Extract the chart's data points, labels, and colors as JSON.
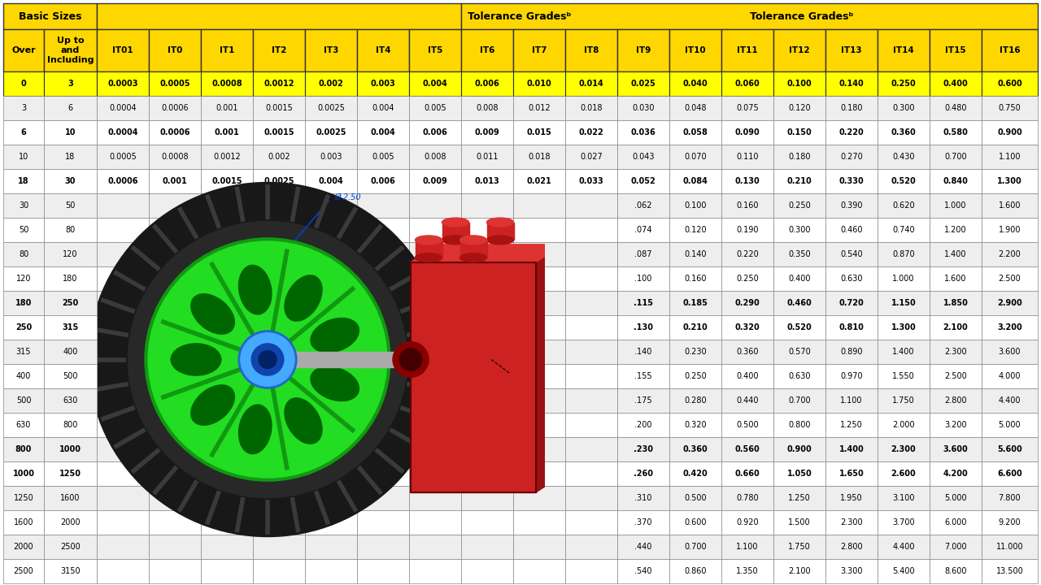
{
  "background_color": "#ffffff",
  "header_bg": "#FFD700",
  "row_yellow_bg": "#FFFF00",
  "col_headers": [
    "Over",
    "Up to\nand\nIncluding",
    "IT01",
    "IT0",
    "IT1",
    "IT2",
    "IT3",
    "IT4",
    "IT5",
    "IT6",
    "IT7",
    "IT8",
    "IT9",
    "IT10",
    "IT11",
    "IT12",
    "IT13",
    "IT14",
    "IT15",
    "IT16"
  ],
  "rows": [
    [
      "0",
      "3",
      "0.0003",
      "0.0005",
      "0.0008",
      "0.0012",
      "0.002",
      "0.003",
      "0.004",
      "0.006",
      "0.010",
      "0.014",
      "0.025",
      "0.040",
      "0.060",
      "0.100",
      "0.140",
      "0.250",
      "0.400",
      "0.600"
    ],
    [
      "3",
      "6",
      "0.0004",
      "0.0006",
      "0.001",
      "0.0015",
      "0.0025",
      "0.004",
      "0.005",
      "0.008",
      "0.012",
      "0.018",
      "0.030",
      "0.048",
      "0.075",
      "0.120",
      "0.180",
      "0.300",
      "0.480",
      "0.750"
    ],
    [
      "6",
      "10",
      "0.0004",
      "0.0006",
      "0.001",
      "0.0015",
      "0.0025",
      "0.004",
      "0.006",
      "0.009",
      "0.015",
      "0.022",
      "0.036",
      "0.058",
      "0.090",
      "0.150",
      "0.220",
      "0.360",
      "0.580",
      "0.900"
    ],
    [
      "10",
      "18",
      "0.0005",
      "0.0008",
      "0.0012",
      "0.002",
      "0.003",
      "0.005",
      "0.008",
      "0.011",
      "0.018",
      "0.027",
      "0.043",
      "0.070",
      "0.110",
      "0.180",
      "0.270",
      "0.430",
      "0.700",
      "1.100"
    ],
    [
      "18",
      "30",
      "0.0006",
      "0.001",
      "0.0015",
      "0.0025",
      "0.004",
      "0.006",
      "0.009",
      "0.013",
      "0.021",
      "0.033",
      "0.052",
      "0.084",
      "0.130",
      "0.210",
      "0.330",
      "0.520",
      "0.840",
      "1.300"
    ],
    [
      "30",
      "50",
      "",
      "",
      "",
      "",
      "",
      "",
      "",
      "",
      "",
      "",
      ".062",
      "0.100",
      "0.160",
      "0.250",
      "0.390",
      "0.620",
      "1.000",
      "1.600"
    ],
    [
      "50",
      "80",
      "",
      "",
      "",
      "",
      "",
      "",
      "",
      "",
      "",
      "",
      ".074",
      "0.120",
      "0.190",
      "0.300",
      "0.460",
      "0.740",
      "1.200",
      "1.900"
    ],
    [
      "80",
      "120",
      "",
      "",
      "",
      "",
      "",
      "",
      "",
      "",
      "",
      "",
      ".087",
      "0.140",
      "0.220",
      "0.350",
      "0.540",
      "0.870",
      "1.400",
      "2.200"
    ],
    [
      "120",
      "180",
      "",
      "",
      "",
      "",
      "",
      "",
      "",
      "",
      "",
      "",
      ".100",
      "0.160",
      "0.250",
      "0.400",
      "0.630",
      "1.000",
      "1.600",
      "2.500"
    ],
    [
      "180",
      "250",
      "",
      "",
      "",
      "",
      "",
      "",
      "",
      "",
      "",
      "",
      ".115",
      "0.185",
      "0.290",
      "0.460",
      "0.720",
      "1.150",
      "1.850",
      "2.900"
    ],
    [
      "250",
      "315",
      "",
      "",
      "",
      "",
      "",
      "",
      "",
      "",
      "",
      "",
      ".130",
      "0.210",
      "0.320",
      "0.520",
      "0.810",
      "1.300",
      "2.100",
      "3.200"
    ],
    [
      "315",
      "400",
      "",
      "",
      "",
      "",
      "",
      "",
      "",
      "",
      "",
      "",
      ".140",
      "0.230",
      "0.360",
      "0.570",
      "0.890",
      "1.400",
      "2.300",
      "3.600"
    ],
    [
      "400",
      "500",
      "",
      "",
      "",
      "",
      "",
      "",
      "",
      "",
      "",
      "",
      ".155",
      "0.250",
      "0.400",
      "0.630",
      "0.970",
      "1.550",
      "2.500",
      "4.000"
    ],
    [
      "500",
      "630",
      "",
      "",
      "",
      "",
      "",
      "",
      "",
      "",
      "",
      "",
      ".175",
      "0.280",
      "0.440",
      "0.700",
      "1.100",
      "1.750",
      "2.800",
      "4.400"
    ],
    [
      "630",
      "800",
      "",
      "",
      "",
      "",
      "",
      "",
      "",
      "",
      "",
      "",
      ".200",
      "0.320",
      "0.500",
      "0.800",
      "1.250",
      "2.000",
      "3.200",
      "5.000"
    ],
    [
      "800",
      "1000",
      "",
      "",
      "",
      "",
      "",
      "",
      "",
      "",
      "",
      "",
      ".230",
      "0.360",
      "0.560",
      "0.900",
      "1.400",
      "2.300",
      "3.600",
      "5.600"
    ],
    [
      "1000",
      "1250",
      "",
      "",
      "",
      "",
      "",
      "",
      "",
      "",
      "",
      "",
      ".260",
      "0.420",
      "0.660",
      "1.050",
      "1.650",
      "2.600",
      "4.200",
      "6.600"
    ],
    [
      "1250",
      "1600",
      "",
      "",
      "",
      "",
      "",
      "",
      "",
      "",
      "",
      "",
      ".310",
      "0.500",
      "0.780",
      "1.250",
      "1.950",
      "3.100",
      "5.000",
      "7.800"
    ],
    [
      "1600",
      "2000",
      "",
      "",
      "",
      "",
      "",
      "",
      "",
      "",
      "",
      "",
      ".370",
      "0.600",
      "0.920",
      "1.500",
      "2.300",
      "3.700",
      "6.000",
      "9.200"
    ],
    [
      "2000",
      "2500",
      "",
      "",
      "",
      "",
      "",
      "",
      "",
      "",
      "",
      "",
      ".440",
      "0.700",
      "1.100",
      "1.750",
      "2.800",
      "4.400",
      "7.000",
      "11.000"
    ],
    [
      "2500",
      "3150",
      "",
      "",
      "",
      "",
      "",
      "",
      "",
      "",
      "",
      "",
      ".540",
      "0.860",
      "1.350",
      "2.100",
      "3.300",
      "5.400",
      "8.600",
      "13.500"
    ]
  ],
  "bold_rows": [
    0,
    2,
    4,
    9,
    10,
    15,
    16
  ],
  "bold_col1_rows": [
    2,
    4,
    9,
    10,
    15,
    16
  ]
}
